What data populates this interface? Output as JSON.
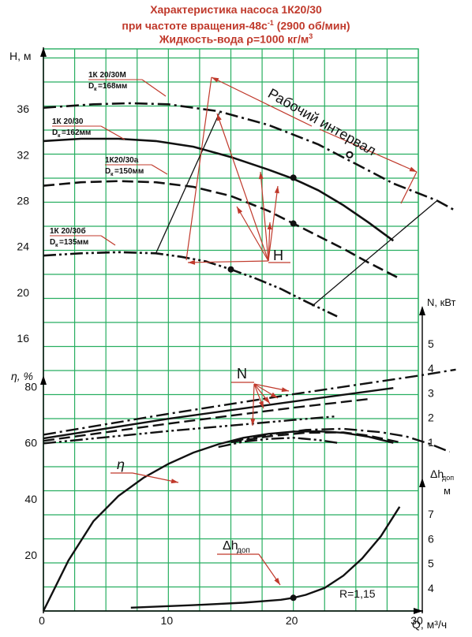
{
  "chart_data": {
    "type": "line",
    "title_lines": [
      "Характеристика насоса 1К20/30",
      "при частоте вращения-48с",
      "Жидкость-вода ρ=1000 кг/м"
    ],
    "title_sup": [
      "-1",
      "",
      "3"
    ],
    "title_tail": [
      "",
      " (2900 об/мин)",
      ""
    ],
    "colors": {
      "grid": "#27ae60",
      "title": "#c0392b",
      "curve": "#111111",
      "annotation": "#c0392b",
      "axis": "#000000"
    },
    "x_axis": {
      "label": "Q, м³/ч",
      "range": [
        0,
        30
      ],
      "ticks": [
        "0",
        "10",
        "20",
        "30"
      ],
      "tick_values": [
        0,
        10,
        20,
        30
      ]
    },
    "h_axis": {
      "label": "H, м",
      "range": [
        14,
        40
      ],
      "ticks": [
        "16",
        "20",
        "24",
        "28",
        "32",
        "36"
      ],
      "tick_values": [
        16,
        20,
        24,
        28,
        32,
        36
      ]
    },
    "eta_axis": {
      "label": "η, %",
      "range": [
        0,
        100
      ],
      "ticks": [
        "20",
        "40",
        "60",
        "80"
      ],
      "tick_values": [
        20,
        40,
        60,
        80
      ]
    },
    "n_axis": {
      "label": "N, кВт",
      "range": [
        0,
        6
      ],
      "ticks": [
        "1",
        "2",
        "3",
        "4",
        "5"
      ],
      "tick_values": [
        1,
        2,
        3,
        4,
        5
      ]
    },
    "dh_axis": {
      "label_main": "Δh",
      "label_sub": "доп",
      "label_unit": "м",
      "range": [
        3,
        9
      ],
      "ticks": [
        "4",
        "5",
        "6",
        "7"
      ],
      "tick_values": [
        4,
        5,
        6,
        7
      ]
    },
    "h_series": [
      {
        "name": "1К 20/30М",
        "dk_label": "D",
        "dk_sub": "к",
        "dk_value": "=168мм",
        "style": "dashdot",
        "x": [
          0,
          4,
          7,
          10,
          14,
          18,
          22,
          25,
          28,
          31.5,
          33
        ],
        "y": [
          36.1,
          36.4,
          36.5,
          36.4,
          35.8,
          34.6,
          32.9,
          31.2,
          29.5,
          28.0,
          27.1
        ]
      },
      {
        "name": "1К 20/30",
        "dk_label": "D",
        "dk_sub": "к",
        "dk_value": "=162мм",
        "style": "solid",
        "x": [
          0,
          3,
          6,
          9,
          12,
          15,
          18,
          20,
          22,
          24,
          26,
          28
        ],
        "y": [
          33.2,
          33.4,
          33.4,
          33.2,
          32.7,
          31.8,
          30.7,
          29.9,
          28.9,
          27.6,
          26.1,
          24.5
        ]
      },
      {
        "name": "1К20/30а",
        "dk_label": "D",
        "dk_sub": "к",
        "dk_value": "=150мм",
        "style": "dashed",
        "x": [
          0,
          3,
          6,
          9,
          12,
          15,
          18,
          20,
          22,
          24,
          26,
          28.5
        ],
        "y": [
          29.3,
          29.6,
          29.7,
          29.6,
          29.2,
          28.4,
          27.1,
          26.0,
          24.9,
          23.8,
          22.6,
          21.2
        ]
      },
      {
        "name": "1К 20/30б",
        "dk_label": "D",
        "dk_sub": "к",
        "dk_value": "=135мм",
        "style": "dashdotdot",
        "x": [
          0,
          3,
          6,
          9,
          11,
          13,
          15,
          17,
          19,
          21,
          23.5
        ],
        "y": [
          23.2,
          23.4,
          23.5,
          23.4,
          23.1,
          22.7,
          22.0,
          21.2,
          20.3,
          19.2,
          17.9
        ]
      }
    ],
    "h_points": [
      {
        "x": 20,
        "y": 30.0
      },
      {
        "x": 20,
        "y": 26.0
      },
      {
        "x": 15,
        "y": 22.0
      }
    ],
    "h_open_point": {
      "x": 24.5,
      "y": 32.0
    },
    "work_range_label": "Рабочий интервал",
    "work_range_lines": [
      {
        "x": [
          9,
          14.1
        ],
        "y": [
          23.4,
          35.7
        ]
      },
      {
        "x": [
          21.5,
          31.5
        ],
        "y": [
          18.8,
          28.0
        ]
      }
    ],
    "h_annotation": "H",
    "n_series": [
      {
        "style": "dashdot",
        "x": [
          0,
          10,
          20,
          30,
          33
        ],
        "y": [
          1.3,
          2.15,
          2.95,
          3.7,
          3.95
        ]
      },
      {
        "style": "solid",
        "x": [
          0,
          10,
          20,
          28
        ],
        "y": [
          1.15,
          1.95,
          2.65,
          3.2
        ]
      },
      {
        "style": "dashed",
        "x": [
          0,
          10,
          20,
          26
        ],
        "y": [
          1.05,
          1.75,
          2.4,
          2.75
        ]
      },
      {
        "style": "dashdotdot",
        "x": [
          0,
          10,
          20,
          23.5
        ],
        "y": [
          0.95,
          1.45,
          1.9,
          2.05
        ]
      }
    ],
    "n_annotation": "N",
    "eta_series": [
      {
        "name": "η",
        "style": "solid",
        "x": [
          0,
          2,
          4,
          6,
          8,
          10,
          12,
          14,
          16,
          18,
          20,
          22,
          24,
          26,
          28
        ],
        "y": [
          0,
          18,
          32,
          41,
          47.5,
          52.5,
          56.5,
          59.5,
          61.8,
          63.2,
          64,
          64.1,
          63.6,
          62.2,
          60
        ]
      },
      {
        "style": "dashdot",
        "x": [
          15,
          18,
          21,
          24,
          27,
          29,
          31,
          32.5
        ],
        "y": [
          60.5,
          62.8,
          64.6,
          65,
          63.8,
          62.3,
          59.5,
          56.8
        ]
      },
      {
        "style": "dashed",
        "x": [
          15,
          18,
          21,
          24,
          26,
          28.5
        ],
        "y": [
          60.2,
          62.3,
          63.6,
          63.7,
          62.6,
          60.2
        ]
      },
      {
        "style": "dashdotdot",
        "x": [
          14,
          16,
          18,
          20,
          22,
          23.5
        ],
        "y": [
          58.5,
          60.4,
          61.4,
          61.8,
          61,
          60
        ]
      }
    ],
    "eta_annotation": "η",
    "dh_series": [
      {
        "style": "solid",
        "x": [
          7,
          12,
          16,
          19,
          20,
          21,
          22.5,
          24,
          25.5,
          27,
          28.5
        ],
        "y": [
          3.2,
          3.3,
          3.4,
          3.52,
          3.6,
          3.72,
          4.0,
          4.5,
          5.2,
          6.1,
          7.3
        ]
      }
    ],
    "dh_point": {
      "x": 20,
      "y": 3.6
    },
    "dh_annotation_main": "Δh",
    "dh_annotation_sub": "доп",
    "r_label": "R=1,15"
  }
}
